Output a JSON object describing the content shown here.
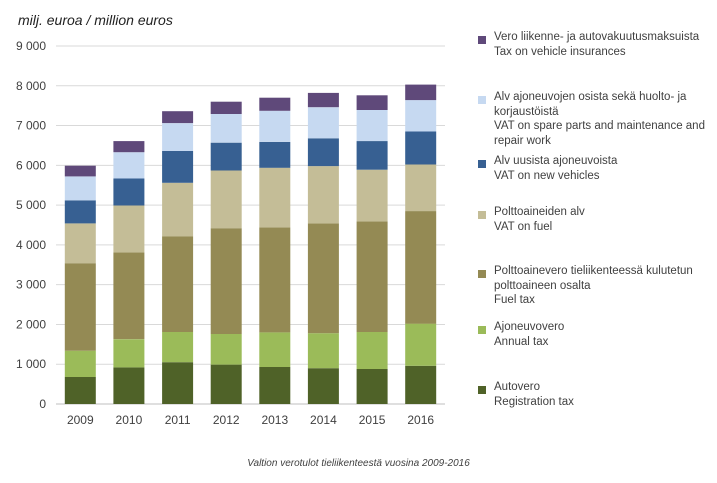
{
  "chart_data": {
    "type": "bar",
    "stacked": true,
    "unit_label": "milj. euroa / million euros",
    "caption": "Valtion verotulot tieliikenteestä vuosina 2009-2016",
    "categories": [
      "2009",
      "2010",
      "2011",
      "2012",
      "2013",
      "2014",
      "2015",
      "2016"
    ],
    "ylim": [
      0,
      9000
    ],
    "yticks": [
      "0",
      "1 000",
      "2 000",
      "3 000",
      "4 000",
      "5 000",
      "6 000",
      "7 000",
      "8 000",
      "9 000"
    ],
    "grid": true,
    "legend_position": "right",
    "series": [
      {
        "name_fi": "Autovero",
        "name_en": "Registration tax",
        "color": "#4f6228",
        "values": [
          680,
          920,
          1050,
          990,
          930,
          900,
          880,
          960
        ]
      },
      {
        "name_fi": "Ajoneuvovero",
        "name_en": "Annual tax",
        "color": "#9bbb59",
        "values": [
          660,
          710,
          760,
          770,
          870,
          880,
          930,
          1060
        ]
      },
      {
        "name_fi": "Polttoainevero tieliikenteessä kulutetun polttoaineen osalta",
        "name_en": "Fuel tax",
        "color": "#948a54",
        "values": [
          2200,
          2180,
          2400,
          2660,
          2640,
          2760,
          2780,
          2830
        ]
      },
      {
        "name_fi": "Polttoaineiden alv",
        "name_en": "VAT on fuel",
        "color": "#c4bd97",
        "values": [
          1000,
          1180,
          1350,
          1450,
          1500,
          1440,
          1300,
          1170
        ]
      },
      {
        "name_fi": "Alv uusista ajoneuvoista",
        "name_en": "VAT on new vehicles",
        "color": "#376092",
        "values": [
          580,
          680,
          800,
          700,
          650,
          700,
          720,
          830
        ]
      },
      {
        "name_fi": "Alv ajoneuvojen osista sekä huolto- ja korjaustöistä",
        "name_en": "VAT on spare parts and maintenance and repair work",
        "color": "#c6d9f1",
        "values": [
          600,
          660,
          700,
          720,
          780,
          780,
          780,
          790
        ]
      },
      {
        "name_fi": "Vero liikenne- ja autovakuutusmaksuista",
        "name_en": "Tax on vehicle insurances",
        "color": "#5f497a",
        "values": [
          270,
          280,
          300,
          310,
          330,
          360,
          370,
          390
        ]
      }
    ]
  }
}
